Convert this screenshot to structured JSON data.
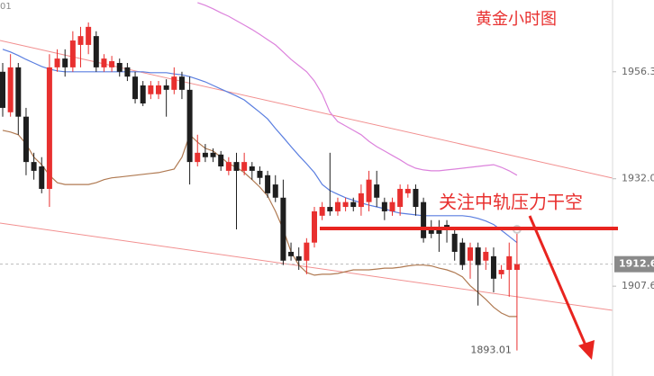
{
  "chart_data": {
    "type": "candlestick",
    "title": "黄金小时图",
    "annotation": "关注中轨压力干空",
    "up_color": "#e8302f",
    "down_color": "#1e1e1e",
    "ylim": [
      1887.2,
      1972.6
    ],
    "yticks": [
      1956.3,
      {
        "value": 1932,
        "label": "1932.0"
      },
      1907.6
    ],
    "last_price": 1912.6,
    "low_label": 1893.01,
    "high_label_partial": "01",
    "open": [
      1956.3,
      1947.1,
      1957.3,
      1946.1,
      1935.8,
      1934.8,
      1929.7,
      1957.3,
      1959.3,
      1957.3,
      1962.4,
      1962.4,
      1964.4,
      1957.3,
      1957.3,
      1958.3,
      1957.3,
      1955.2,
      1953.2,
      1951.2,
      1951.2,
      1953.2,
      1952.2,
      1955.2,
      1952.2,
      1935.8,
      1937.9,
      1937.9,
      1937.5,
      1933.8,
      1935.8,
      1933.8,
      1934.8,
      1933.8,
      1932.8,
      1930.7,
      1927.7,
      1915.4,
      1914.4,
      1913.4,
      1917.5,
      1923.6,
      1925.6,
      1924.6,
      1925.6,
      1926.7,
      1925.6,
      1926.7,
      1930.7,
      1926.7,
      1924.6,
      1925.6,
      1928.7,
      1929.7,
      1926.7,
      1920.5,
      1920.5,
      1921.5,
      1919.5,
      1917.5,
      1913.4,
      1916.4,
      1913.4,
      1914.4,
      1910.3,
      1911.3,
      1911.3
    ],
    "high": [
      1958.3,
      1960.3,
      1958.3,
      1948.1,
      1937.9,
      1936.9,
      1960.3,
      1961.4,
      1961.4,
      1965.5,
      1966.5,
      1967.5,
      1965.5,
      1960.3,
      1959.9,
      1959.3,
      1958.3,
      1956.3,
      1954.2,
      1954.2,
      1954.2,
      1954.6,
      1957.3,
      1956.3,
      1955.2,
      1942.0,
      1939.9,
      1938.9,
      1938.3,
      1936.9,
      1937.9,
      1937.9,
      1935.8,
      1934.8,
      1933.8,
      1932.8,
      1931.8,
      1917.5,
      1916.4,
      1918.5,
      1925.6,
      1926.7,
      1937.9,
      1927.7,
      1927.7,
      1927.7,
      1930.7,
      1933.8,
      1933.8,
      1927.7,
      1927.7,
      1930.7,
      1930.7,
      1930.7,
      1927.7,
      1922.6,
      1922.6,
      1922.6,
      1920.5,
      1918.5,
      1917.5,
      1917.5,
      1916.4,
      1916.4,
      1912.4,
      1917.5,
      1920.5
    ],
    "low": [
      1946.1,
      1946.1,
      1942.0,
      1932.8,
      1931.8,
      1928.7,
      1925.6,
      1956.3,
      1955.2,
      1956.3,
      1957.3,
      1960.3,
      1956.3,
      1956.3,
      1956.3,
      1955.2,
      1954.2,
      1949.1,
      1948.5,
      1950.1,
      1950.1,
      1946.1,
      1951.2,
      1950.1,
      1930.7,
      1934.8,
      1935.8,
      1935.8,
      1933.8,
      1932.8,
      1920.5,
      1932.8,
      1931.8,
      1930.7,
      1927.7,
      1926.7,
      1912.4,
      1913.4,
      1911.3,
      1910.3,
      1916.4,
      1922.6,
      1923.6,
      1923.6,
      1924.6,
      1924.6,
      1923.6,
      1924.6,
      1925.6,
      1922.6,
      1923.6,
      1923.6,
      1927.7,
      1923.6,
      1917.5,
      1918.5,
      1915.4,
      1917.5,
      1913.4,
      1911.3,
      1909.3,
      1903.2,
      1911.3,
      1906.2,
      1909.3,
      1905.2,
      1893.0
    ],
    "close": [
      1948.1,
      1957.3,
      1946.1,
      1935.8,
      1933.8,
      1929.7,
      1957.3,
      1959.3,
      1957.3,
      1963.4,
      1964.4,
      1966.5,
      1957.3,
      1959.3,
      1958.7,
      1956.3,
      1955.2,
      1950.1,
      1949.1,
      1953.2,
      1953.2,
      1952.2,
      1955.2,
      1952.2,
      1935.8,
      1937.9,
      1936.9,
      1936.9,
      1934.8,
      1935.8,
      1933.8,
      1935.8,
      1933.8,
      1932.2,
      1928.7,
      1927.7,
      1913.4,
      1914.4,
      1913.4,
      1917.5,
      1924.6,
      1925.6,
      1924.6,
      1926.7,
      1926.7,
      1925.6,
      1928.7,
      1931.8,
      1927.7,
      1924.6,
      1926.7,
      1929.7,
      1929.7,
      1925.6,
      1918.5,
      1919.5,
      1919.5,
      1920.5,
      1915.4,
      1912.4,
      1916.4,
      1912.4,
      1915.4,
      1909.3,
      1911.3,
      1914.4,
      1912.6
    ],
    "lines": [
      {
        "color": "#dc82dc",
        "values": [
          null,
          null,
          null,
          null,
          null,
          null,
          null,
          null,
          null,
          null,
          null,
          null,
          null,
          null,
          null,
          null,
          null,
          null,
          null,
          null,
          null,
          null,
          null,
          null,
          null,
          1972.0,
          1971.4,
          1970.6,
          1969.7,
          1968.9,
          1967.9,
          1966.9,
          1965.9,
          1964.8,
          1963.6,
          1962.4,
          1960.8,
          1959.1,
          1957.7,
          1956.3,
          1954.2,
          1951.2,
          1947.1,
          1945.0,
          1944.0,
          1943.0,
          1942.0,
          1940.5,
          1939.3,
          1938.3,
          1937.3,
          1936.3,
          1935.2,
          1934.4,
          1934.0,
          1933.8,
          1933.8,
          1934.0,
          1934.2,
          1934.4,
          1934.6,
          1934.8,
          1935.0,
          1935.2,
          1934.6,
          1933.8,
          1932.8
        ]
      },
      {
        "color": "#5a7ee0",
        "values": [
          1961.4,
          1960.8,
          1960.0,
          1959.1,
          1958.3,
          1957.5,
          1956.9,
          1956.5,
          1956.3,
          1956.3,
          1956.3,
          1956.3,
          1956.3,
          1956.3,
          1956.3,
          1956.3,
          1956.3,
          1956.3,
          1956.3,
          1956.1,
          1956.1,
          1956.1,
          1955.8,
          1955.6,
          1955.2,
          1954.6,
          1954.0,
          1953.2,
          1952.4,
          1951.6,
          1950.8,
          1949.9,
          1948.5,
          1947.1,
          1945.6,
          1943.4,
          1941.4,
          1939.3,
          1937.3,
          1935.4,
          1933.4,
          1930.7,
          1929.3,
          1928.5,
          1927.7,
          1927.1,
          1926.5,
          1926.0,
          1925.6,
          1925.2,
          1924.6,
          1924.2,
          1924.0,
          1923.8,
          1923.6,
          1923.6,
          1923.6,
          1923.6,
          1923.6,
          1923.6,
          1923.4,
          1923.0,
          1922.4,
          1921.6,
          1920.3,
          1918.9,
          1917.5
        ]
      },
      {
        "color": "#b07a52",
        "values": [
          1943.0,
          1942.6,
          1942.0,
          1939.9,
          1936.9,
          1935.2,
          1932.8,
          1931.1,
          1930.7,
          1930.7,
          1930.7,
          1930.7,
          1931.1,
          1931.8,
          1932.2,
          1932.4,
          1932.6,
          1932.8,
          1933.0,
          1933.2,
          1933.4,
          1933.8,
          1934.2,
          1936.9,
          1942.0,
          1940.3,
          1938.9,
          1938.3,
          1936.9,
          1935.4,
          1934.6,
          1933.4,
          1931.8,
          1930.1,
          1928.1,
          1924.6,
          1920.5,
          1915.4,
          1912.4,
          1910.7,
          1910.1,
          1910.3,
          1910.3,
          1910.5,
          1910.9,
          1911.3,
          1911.3,
          1911.3,
          1911.5,
          1911.7,
          1911.7,
          1911.9,
          1912.2,
          1912.4,
          1912.4,
          1912.2,
          1911.7,
          1911.3,
          1910.7,
          1909.7,
          1907.7,
          1906.2,
          1904.6,
          1902.8,
          1901.5,
          1900.7,
          1900.7
        ]
      }
    ]
  }
}
